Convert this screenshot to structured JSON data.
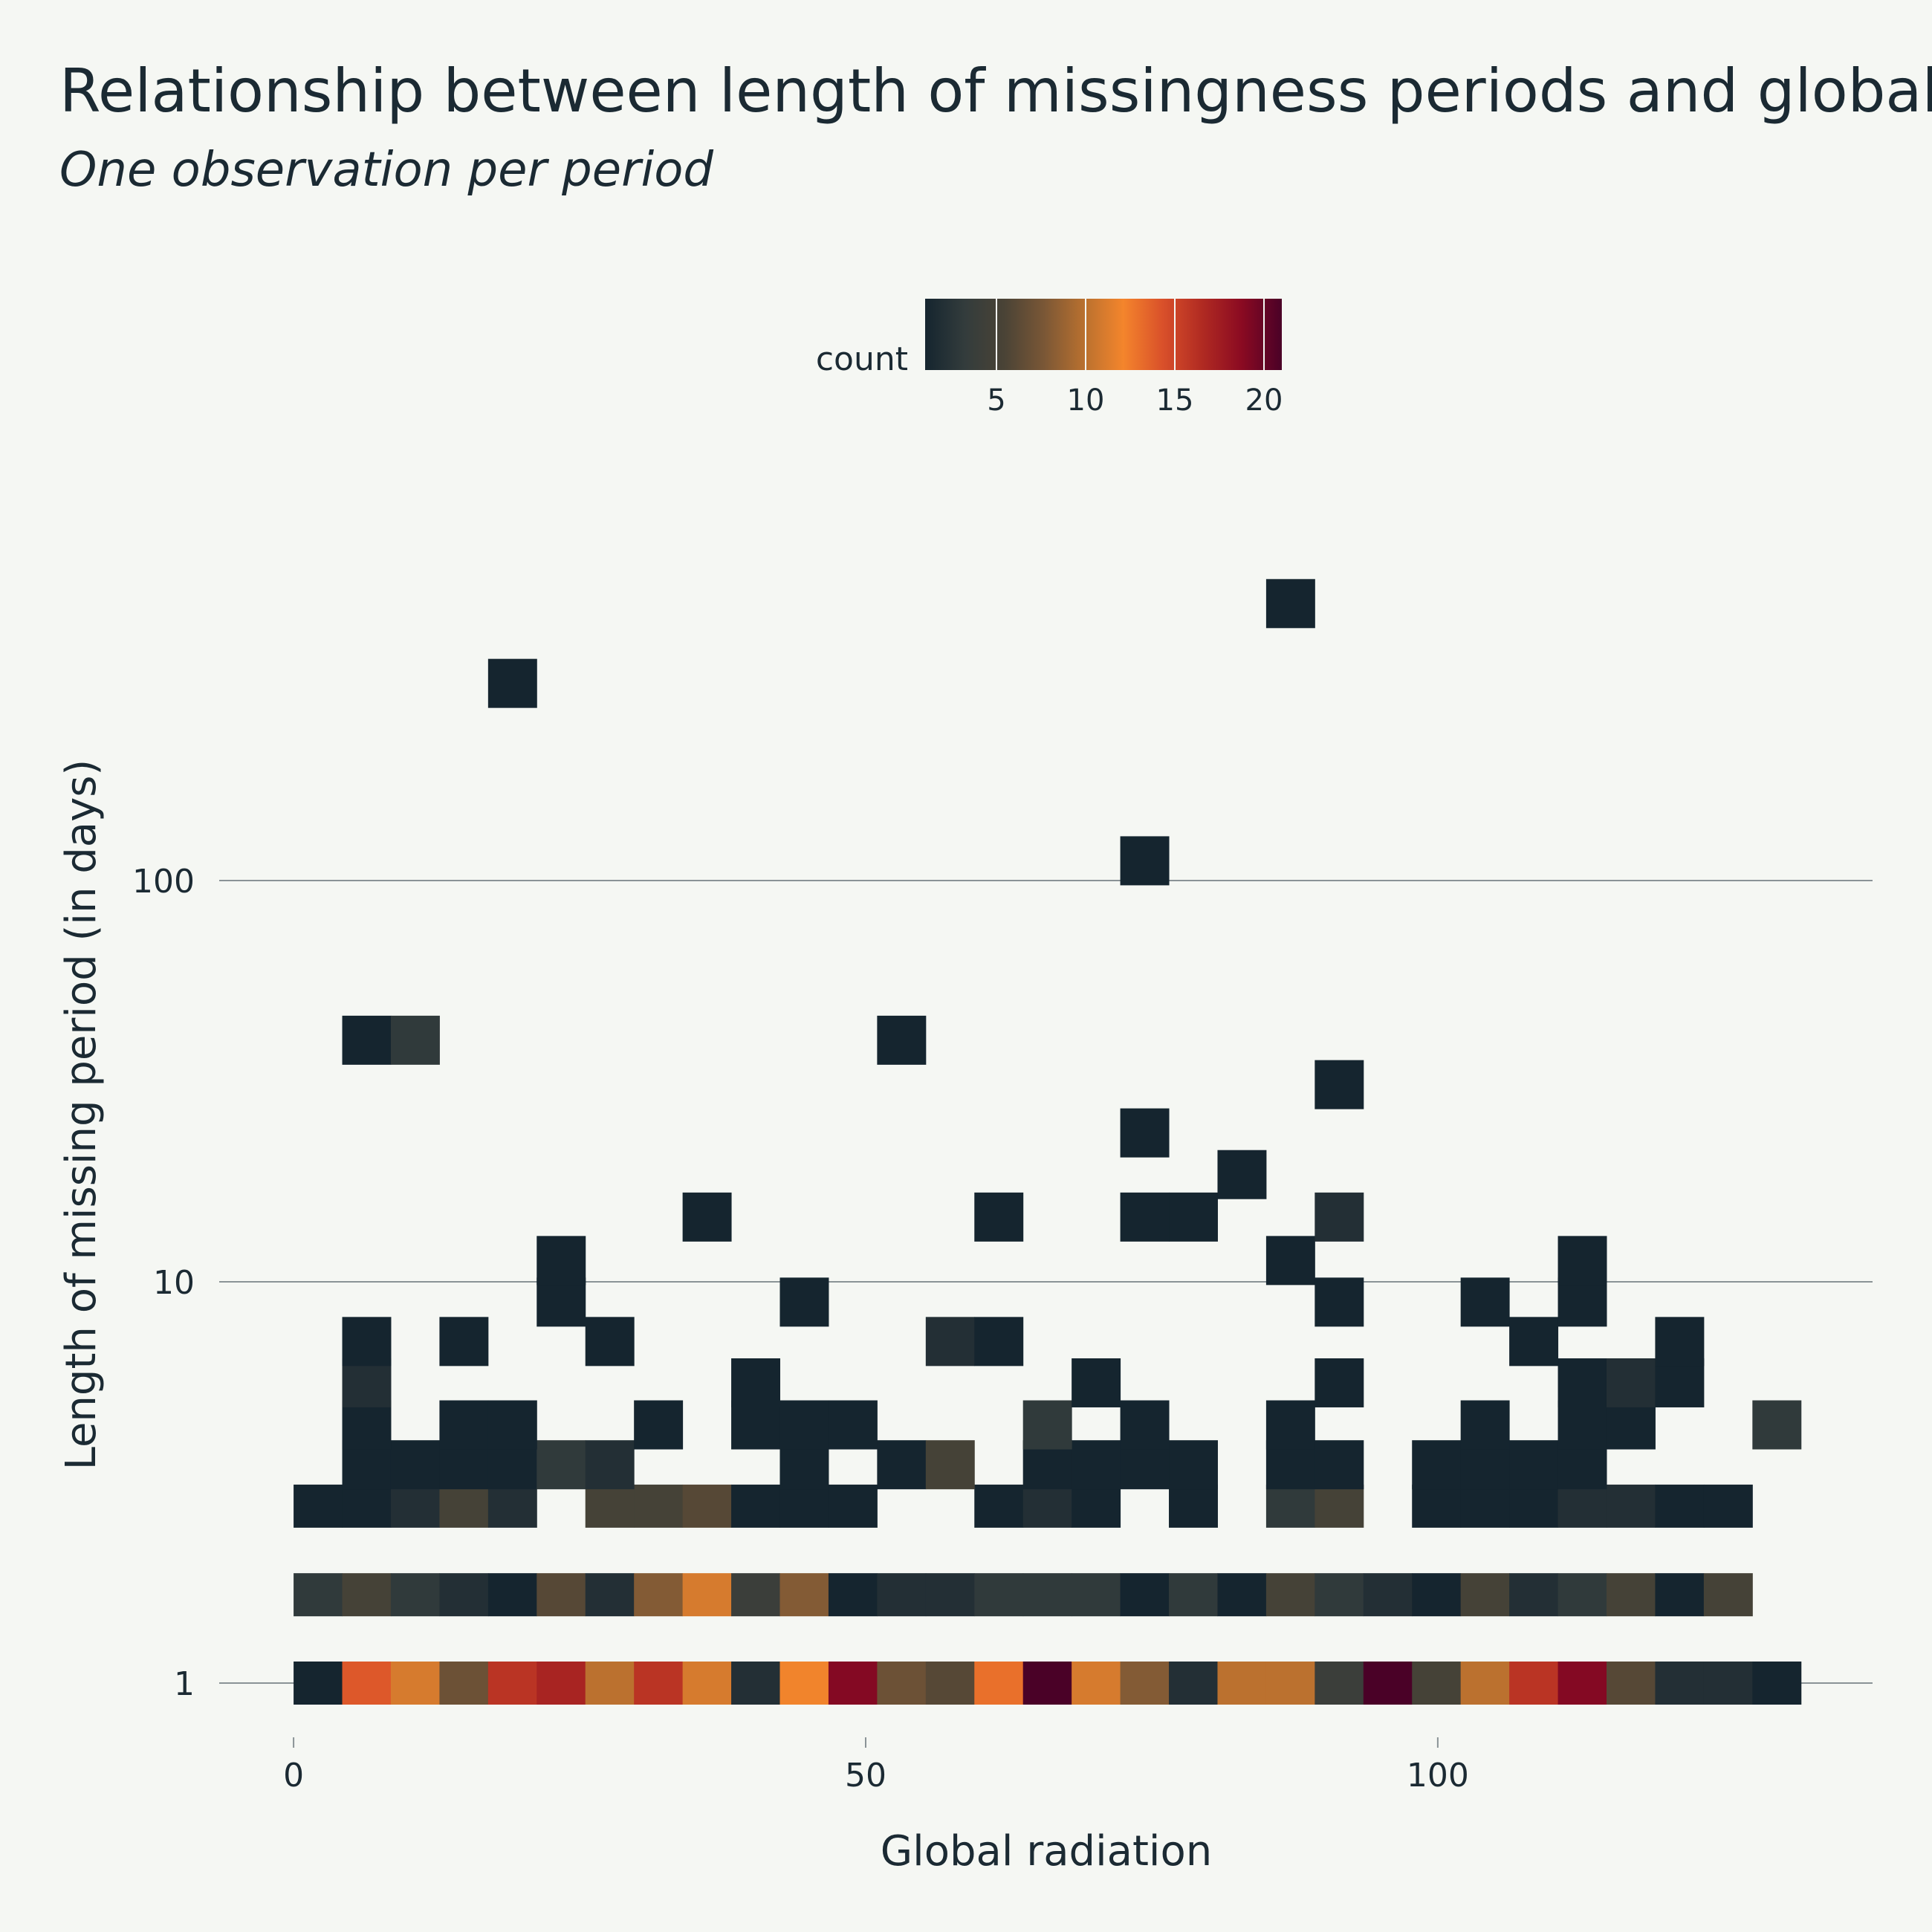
{
  "chart_data": {
    "type": "heatmap",
    "title": "Relationship between length of missingness periods and global",
    "subtitle": "One observation per period",
    "xlabel": "Global radiation",
    "ylabel": "Length of missing period (in days)",
    "xlim": [
      -6.5,
      138
    ],
    "x_ticks": [
      "0",
      "50",
      "100"
    ],
    "y_ticks": [
      "1",
      "10",
      "100"
    ],
    "y_scale": "log",
    "grid": "horizontal",
    "bin_width": 4.25,
    "y_levels": [
      1,
      1.66,
      2.76,
      3.5,
      4.4,
      5.6,
      7.1,
      8.9,
      11.3,
      14.5,
      18.5,
      23.5,
      31,
      40,
      112,
      310,
      490
    ],
    "colorbar": {
      "title": "count",
      "position": "top",
      "ticks": [
        "5",
        "10",
        "15",
        "20"
      ],
      "min": 1,
      "max": 21,
      "colorscale": [
        "#15252f",
        "#333c3c",
        "#4a4336",
        "#7a5736",
        "#b8702f",
        "#f4852c",
        "#d9502a",
        "#b02a22",
        "#8a0a22",
        "#4a0127"
      ]
    },
    "cells": [
      {
        "x": 0,
        "y": 1,
        "count": 1
      },
      {
        "x": 1,
        "y": 1,
        "count": 14
      },
      {
        "x": 2,
        "y": 1,
        "count": 11
      },
      {
        "x": 3,
        "y": 1,
        "count": 7
      },
      {
        "x": 4,
        "y": 1,
        "count": 16
      },
      {
        "x": 5,
        "y": 1,
        "count": 17
      },
      {
        "x": 6,
        "y": 1,
        "count": 10
      },
      {
        "x": 7,
        "y": 1,
        "count": 16
      },
      {
        "x": 8,
        "y": 1,
        "count": 11
      },
      {
        "x": 9,
        "y": 1,
        "count": 2
      },
      {
        "x": 10,
        "y": 1,
        "count": 12
      },
      {
        "x": 11,
        "y": 1,
        "count": 19
      },
      {
        "x": 12,
        "y": 1,
        "count": 7
      },
      {
        "x": 13,
        "y": 1,
        "count": 6
      },
      {
        "x": 14,
        "y": 1,
        "count": 13
      },
      {
        "x": 15,
        "y": 1,
        "count": 21
      },
      {
        "x": 16,
        "y": 1,
        "count": 11
      },
      {
        "x": 17,
        "y": 1,
        "count": 8
      },
      {
        "x": 18,
        "y": 1,
        "count": 2
      },
      {
        "x": 19,
        "y": 1,
        "count": 10
      },
      {
        "x": 20,
        "y": 1,
        "count": 10
      },
      {
        "x": 21,
        "y": 1,
        "count": 4
      },
      {
        "x": 22,
        "y": 1,
        "count": 21
      },
      {
        "x": 23,
        "y": 1,
        "count": 5
      },
      {
        "x": 24,
        "y": 1,
        "count": 10
      },
      {
        "x": 25,
        "y": 1,
        "count": 16
      },
      {
        "x": 26,
        "y": 1,
        "count": 19
      },
      {
        "x": 27,
        "y": 1,
        "count": 6
      },
      {
        "x": 28,
        "y": 1,
        "count": 2
      },
      {
        "x": 29,
        "y": 1,
        "count": 2
      },
      {
        "x": 30,
        "y": 1,
        "count": 1
      },
      {
        "x": 0,
        "y": 1.66,
        "count": 3
      },
      {
        "x": 1,
        "y": 1.66,
        "count": 5
      },
      {
        "x": 2,
        "y": 1.66,
        "count": 3
      },
      {
        "x": 3,
        "y": 1.66,
        "count": 2
      },
      {
        "x": 4,
        "y": 1.66,
        "count": 1
      },
      {
        "x": 5,
        "y": 1.66,
        "count": 6
      },
      {
        "x": 6,
        "y": 1.66,
        "count": 2
      },
      {
        "x": 7,
        "y": 1.66,
        "count": 8
      },
      {
        "x": 8,
        "y": 1.66,
        "count": 11
      },
      {
        "x": 9,
        "y": 1.66,
        "count": 4
      },
      {
        "x": 10,
        "y": 1.66,
        "count": 8
      },
      {
        "x": 11,
        "y": 1.66,
        "count": 1
      },
      {
        "x": 12,
        "y": 1.66,
        "count": 2
      },
      {
        "x": 13,
        "y": 1.66,
        "count": 2
      },
      {
        "x": 14,
        "y": 1.66,
        "count": 3
      },
      {
        "x": 15,
        "y": 1.66,
        "count": 3
      },
      {
        "x": 16,
        "y": 1.66,
        "count": 3
      },
      {
        "x": 17,
        "y": 1.66,
        "count": 1
      },
      {
        "x": 18,
        "y": 1.66,
        "count": 3
      },
      {
        "x": 19,
        "y": 1.66,
        "count": 1
      },
      {
        "x": 20,
        "y": 1.66,
        "count": 5
      },
      {
        "x": 21,
        "y": 1.66,
        "count": 3
      },
      {
        "x": 22,
        "y": 1.66,
        "count": 2
      },
      {
        "x": 23,
        "y": 1.66,
        "count": 1
      },
      {
        "x": 24,
        "y": 1.66,
        "count": 5
      },
      {
        "x": 25,
        "y": 1.66,
        "count": 2
      },
      {
        "x": 26,
        "y": 1.66,
        "count": 3
      },
      {
        "x": 27,
        "y": 1.66,
        "count": 5
      },
      {
        "x": 28,
        "y": 1.66,
        "count": 1
      },
      {
        "x": 29,
        "y": 1.66,
        "count": 5
      },
      {
        "x": 0,
        "y": 2.76,
        "count": 1
      },
      {
        "x": 1,
        "y": 2.76,
        "count": 1
      },
      {
        "x": 2,
        "y": 2.76,
        "count": 2
      },
      {
        "x": 3,
        "y": 2.76,
        "count": 5
      },
      {
        "x": 4,
        "y": 2.76,
        "count": 2
      },
      {
        "x": 6,
        "y": 2.76,
        "count": 5
      },
      {
        "x": 7,
        "y": 2.76,
        "count": 5
      },
      {
        "x": 8,
        "y": 2.76,
        "count": 6
      },
      {
        "x": 9,
        "y": 2.76,
        "count": 1
      },
      {
        "x": 10,
        "y": 2.76,
        "count": 1
      },
      {
        "x": 11,
        "y": 2.76,
        "count": 1
      },
      {
        "x": 14,
        "y": 2.76,
        "count": 1
      },
      {
        "x": 15,
        "y": 2.76,
        "count": 2
      },
      {
        "x": 16,
        "y": 2.76,
        "count": 1
      },
      {
        "x": 18,
        "y": 2.76,
        "count": 1
      },
      {
        "x": 20,
        "y": 2.76,
        "count": 3
      },
      {
        "x": 21,
        "y": 2.76,
        "count": 5
      },
      {
        "x": 23,
        "y": 2.76,
        "count": 1
      },
      {
        "x": 24,
        "y": 2.76,
        "count": 1
      },
      {
        "x": 25,
        "y": 2.76,
        "count": 1
      },
      {
        "x": 26,
        "y": 2.76,
        "count": 2
      },
      {
        "x": 27,
        "y": 2.76,
        "count": 2
      },
      {
        "x": 28,
        "y": 2.76,
        "count": 1
      },
      {
        "x": 29,
        "y": 2.76,
        "count": 1
      },
      {
        "x": 1,
        "y": 3.5,
        "count": 1
      },
      {
        "x": 2,
        "y": 3.5,
        "count": 1
      },
      {
        "x": 3,
        "y": 3.5,
        "count": 1
      },
      {
        "x": 4,
        "y": 3.5,
        "count": 1
      },
      {
        "x": 5,
        "y": 3.5,
        "count": 3
      },
      {
        "x": 6,
        "y": 3.5,
        "count": 2
      },
      {
        "x": 10,
        "y": 3.5,
        "count": 1
      },
      {
        "x": 12,
        "y": 3.5,
        "count": 1
      },
      {
        "x": 13,
        "y": 3.5,
        "count": 5
      },
      {
        "x": 15,
        "y": 3.5,
        "count": 1
      },
      {
        "x": 16,
        "y": 3.5,
        "count": 1
      },
      {
        "x": 17,
        "y": 3.5,
        "count": 1
      },
      {
        "x": 18,
        "y": 3.5,
        "count": 1
      },
      {
        "x": 20,
        "y": 3.5,
        "count": 1
      },
      {
        "x": 21,
        "y": 3.5,
        "count": 1
      },
      {
        "x": 23,
        "y": 3.5,
        "count": 1
      },
      {
        "x": 24,
        "y": 3.5,
        "count": 1
      },
      {
        "x": 25,
        "y": 3.5,
        "count": 1
      },
      {
        "x": 26,
        "y": 3.5,
        "count": 1
      },
      {
        "x": 1,
        "y": 4.4,
        "count": 1
      },
      {
        "x": 3,
        "y": 4.4,
        "count": 1
      },
      {
        "x": 4,
        "y": 4.4,
        "count": 1
      },
      {
        "x": 7,
        "y": 4.4,
        "count": 1
      },
      {
        "x": 9,
        "y": 4.4,
        "count": 1
      },
      {
        "x": 10,
        "y": 4.4,
        "count": 1
      },
      {
        "x": 11,
        "y": 4.4,
        "count": 1
      },
      {
        "x": 15,
        "y": 4.4,
        "count": 3
      },
      {
        "x": 17,
        "y": 4.4,
        "count": 1
      },
      {
        "x": 20,
        "y": 4.4,
        "count": 1
      },
      {
        "x": 24,
        "y": 4.4,
        "count": 1
      },
      {
        "x": 26,
        "y": 4.4,
        "count": 1
      },
      {
        "x": 27,
        "y": 4.4,
        "count": 1
      },
      {
        "x": 30,
        "y": 4.4,
        "count": 3
      },
      {
        "x": 1,
        "y": 5.6,
        "count": 2
      },
      {
        "x": 9,
        "y": 5.6,
        "count": 1
      },
      {
        "x": 16,
        "y": 5.6,
        "count": 1
      },
      {
        "x": 21,
        "y": 5.6,
        "count": 1
      },
      {
        "x": 26,
        "y": 5.6,
        "count": 1
      },
      {
        "x": 27,
        "y": 5.6,
        "count": 2
      },
      {
        "x": 28,
        "y": 5.6,
        "count": 1
      },
      {
        "x": 1,
        "y": 7.1,
        "count": 1
      },
      {
        "x": 3,
        "y": 7.1,
        "count": 1
      },
      {
        "x": 6,
        "y": 7.1,
        "count": 1
      },
      {
        "x": 13,
        "y": 7.1,
        "count": 2
      },
      {
        "x": 14,
        "y": 7.1,
        "count": 1
      },
      {
        "x": 25,
        "y": 7.1,
        "count": 1
      },
      {
        "x": 28,
        "y": 7.1,
        "count": 1
      },
      {
        "x": 5,
        "y": 8.9,
        "count": 1
      },
      {
        "x": 10,
        "y": 8.9,
        "count": 1
      },
      {
        "x": 21,
        "y": 8.9,
        "count": 1
      },
      {
        "x": 24,
        "y": 8.9,
        "count": 1
      },
      {
        "x": 26,
        "y": 8.9,
        "count": 1
      },
      {
        "x": 5,
        "y": 11.3,
        "count": 1
      },
      {
        "x": 20,
        "y": 11.3,
        "count": 1
      },
      {
        "x": 26,
        "y": 11.3,
        "count": 1
      },
      {
        "x": 8,
        "y": 14.5,
        "count": 1
      },
      {
        "x": 14,
        "y": 14.5,
        "count": 1
      },
      {
        "x": 17,
        "y": 14.5,
        "count": 1
      },
      {
        "x": 18,
        "y": 14.5,
        "count": 1
      },
      {
        "x": 21,
        "y": 14.5,
        "count": 2
      },
      {
        "x": 19,
        "y": 18.5,
        "count": 1
      },
      {
        "x": 17,
        "y": 23.5,
        "count": 1
      },
      {
        "x": 21,
        "y": 31,
        "count": 1
      },
      {
        "x": 1,
        "y": 40,
        "count": 1
      },
      {
        "x": 2,
        "y": 40,
        "count": 3
      },
      {
        "x": 12,
        "y": 40,
        "count": 1
      },
      {
        "x": 17,
        "y": 112,
        "count": 1
      },
      {
        "x": 4,
        "y": 310,
        "count": 1
      },
      {
        "x": 20,
        "y": 490,
        "count": 1
      }
    ]
  }
}
